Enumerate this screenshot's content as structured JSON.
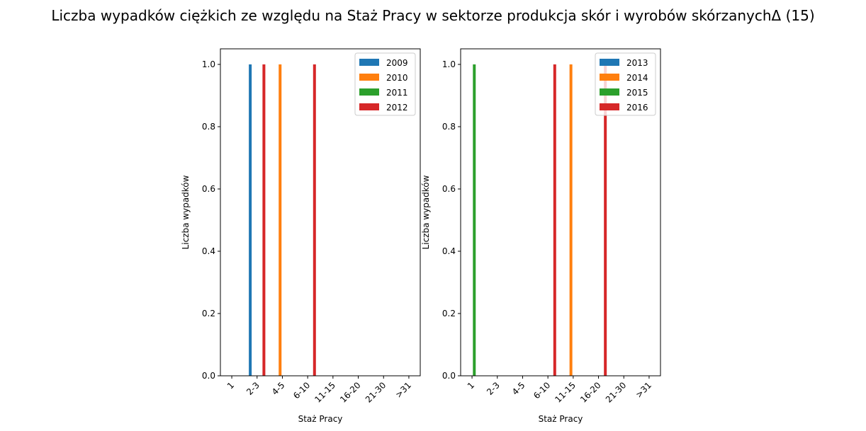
{
  "figure": {
    "title": "Liczba wypadków ciężkich ze względu na Staż Pracy w sektorze produkcja skór i wyrobów skórzanychΔ (15)"
  },
  "colors": {
    "c0": "#1f77b4",
    "c1": "#ff7f0e",
    "c2": "#2ca02c",
    "c3": "#d62728"
  },
  "chart_data": [
    {
      "type": "bar",
      "categories": [
        "1",
        "2-3",
        "4-5",
        "6-10",
        "11-15",
        "16-20",
        "21-30",
        ">31"
      ],
      "xlabel": "Staż Pracy",
      "ylabel": "Liczba wypadków",
      "ylim": [
        0,
        1.05
      ],
      "yticks": [
        "0.0",
        "0.2",
        "0.4",
        "0.6",
        "0.8",
        "1.0"
      ],
      "legend_position": "top-right",
      "series": [
        {
          "name": "2009",
          "color": "#1f77b4",
          "values": [
            0,
            1,
            0,
            0,
            0,
            0,
            0,
            0
          ]
        },
        {
          "name": "2010",
          "color": "#ff7f0e",
          "values": [
            0,
            0,
            1,
            0,
            0,
            0,
            0,
            0
          ]
        },
        {
          "name": "2011",
          "color": "#2ca02c",
          "values": [
            0,
            0,
            0,
            0,
            0,
            0,
            0,
            0
          ]
        },
        {
          "name": "2012",
          "color": "#d62728",
          "values": [
            0,
            1,
            0,
            1,
            0,
            0,
            0,
            0
          ]
        }
      ]
    },
    {
      "type": "bar",
      "categories": [
        "1",
        "2-3",
        "4-5",
        "6-10",
        "11-15",
        "16-20",
        "21-30",
        ">31"
      ],
      "xlabel": "Staż Pracy",
      "ylabel": "Liczba wypadków",
      "ylim": [
        0,
        1.05
      ],
      "yticks": [
        "0.0",
        "0.2",
        "0.4",
        "0.6",
        "0.8",
        "1.0"
      ],
      "legend_position": "top-right",
      "series": [
        {
          "name": "2013",
          "color": "#1f77b4",
          "values": [
            0,
            0,
            0,
            0,
            0,
            0,
            0,
            0
          ]
        },
        {
          "name": "2014",
          "color": "#ff7f0e",
          "values": [
            0,
            0,
            0,
            0,
            1,
            0,
            0,
            0
          ]
        },
        {
          "name": "2015",
          "color": "#2ca02c",
          "values": [
            1,
            0,
            0,
            0,
            0,
            0,
            0,
            0
          ]
        },
        {
          "name": "2016",
          "color": "#d62728",
          "values": [
            0,
            0,
            0,
            1,
            0,
            1,
            0,
            0
          ]
        }
      ]
    }
  ]
}
